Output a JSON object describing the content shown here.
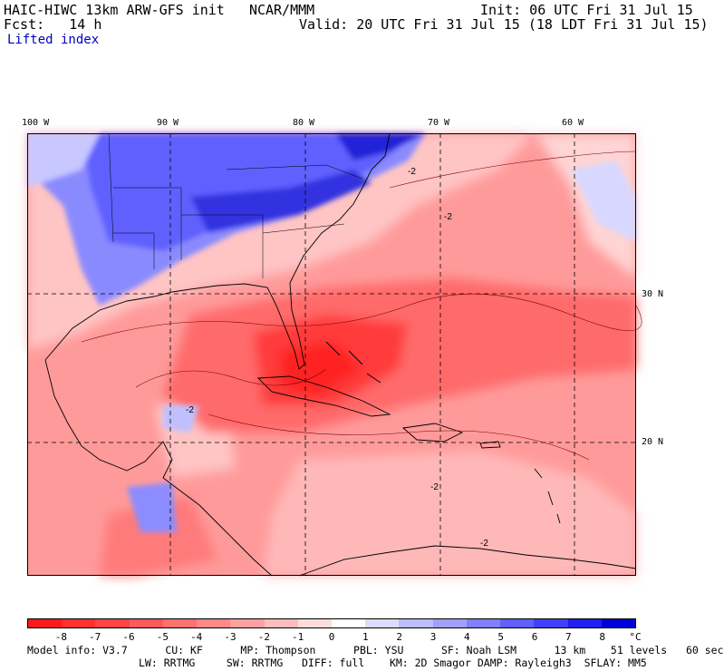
{
  "header": {
    "model": "HAIC-HIWC 13km ARW-GFS init",
    "org": "NCAR/MMM",
    "init": "Init: 06 UTC Fri 31 Jul 15",
    "fcst_label": "Fcst:",
    "fcst_value": "14 h",
    "valid": "Valid: 20 UTC Fri 31 Jul 15 (18 LDT Fri 31 Jul 15)",
    "field": "Lifted index"
  },
  "map": {
    "lon_labels": [
      "100 W",
      "90 W",
      "80 W",
      "70 W",
      "60 W"
    ],
    "lat_labels": [
      "30 N",
      "20 N"
    ],
    "contour_labels": [
      "-2"
    ]
  },
  "colorbar": {
    "ticks": [
      "-8",
      "-7",
      "-6",
      "-5",
      "-4",
      "-3",
      "-2",
      "-1",
      "0",
      "1",
      "2",
      "3",
      "4",
      "5",
      "6",
      "7",
      "8"
    ],
    "unit": "°C",
    "colors": [
      "#ff1a1a",
      "#ff3030",
      "#ff4444",
      "#ff5a5a",
      "#ff7070",
      "#ff8888",
      "#ffa0a0",
      "#ffbcbc",
      "#ffdcdc",
      "#ffffff",
      "#dcdcff",
      "#bcbcff",
      "#a0a0ff",
      "#8080ff",
      "#6060ff",
      "#4040ff",
      "#2020f0",
      "#0000d8"
    ]
  },
  "model_info": {
    "line1": "Model info: V3.7      CU: KF      MP: Thompson      PBL: YSU      SF: Noah LSM      13 km    51 levels   60 sec",
    "line2": "LW: RRTMG     SW: RRTMG   DIFF: full    KM: 2D Smagor DAMP: Rayleigh3  SFLAY: MM5"
  }
}
